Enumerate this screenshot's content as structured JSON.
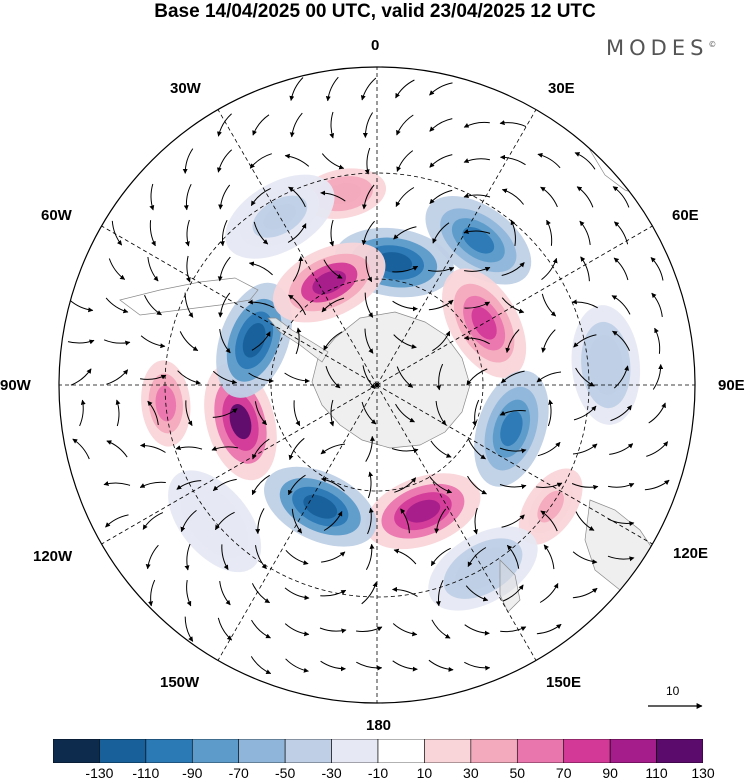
{
  "title": "Base 14/04/2025 00 UTC, valid 23/04/2025 12 UTC",
  "brand": "MODES",
  "brand_mark": "©",
  "longitude_labels": {
    "lon_0": "0",
    "lon_30e": "30E",
    "lon_60e": "60E",
    "lon_90e": "90E",
    "lon_120e": "120E",
    "lon_150e": "150E",
    "lon_180": "180",
    "lon_150w": "150W",
    "lon_120w": "120W",
    "lon_90w": "90W",
    "lon_60w": "60W",
    "lon_30w": "30W"
  },
  "vector_scale_label": "10",
  "colorbar": {
    "colors": [
      "#0d2c4d",
      "#17609a",
      "#2b79b5",
      "#5c9bca",
      "#8fb6da",
      "#bfd0e6",
      "#e6e8f3",
      "#ffffff",
      "#f9d5d9",
      "#f3aabd",
      "#ea76ae",
      "#d33a98",
      "#a51d8a",
      "#5b0b6b"
    ],
    "labels": [
      "-130",
      "-110",
      "-90",
      "-70",
      "-50",
      "-30",
      "-10",
      "10",
      "30",
      "50",
      "70",
      "90",
      "110",
      "130"
    ]
  },
  "anomalies": [
    {
      "lon": 8,
      "lat": -55,
      "value": -110
    },
    {
      "lon": 35,
      "lat": -40,
      "value": -90
    },
    {
      "lon": 60,
      "lat": -55,
      "value": 80
    },
    {
      "lon": 108,
      "lat": -50,
      "value": -100
    },
    {
      "lon": 160,
      "lat": -52,
      "value": 110
    },
    {
      "lon": -155,
      "lat": -52,
      "value": -110
    },
    {
      "lon": -105,
      "lat": -50,
      "value": 120
    },
    {
      "lon": -70,
      "lat": -53,
      "value": -120
    },
    {
      "lon": -25,
      "lat": -58,
      "value": 100
    },
    {
      "lon": -10,
      "lat": -35,
      "value": 50
    },
    {
      "lon": -30,
      "lat": -35,
      "value": -30
    },
    {
      "lon": 85,
      "lat": -25,
      "value": -40
    },
    {
      "lon": 125,
      "lat": -30,
      "value": 40
    },
    {
      "lon": 150,
      "lat": -30,
      "value": -40
    },
    {
      "lon": -130,
      "lat": -30,
      "value": -20
    },
    {
      "lon": -95,
      "lat": -30,
      "value": 60
    }
  ]
}
